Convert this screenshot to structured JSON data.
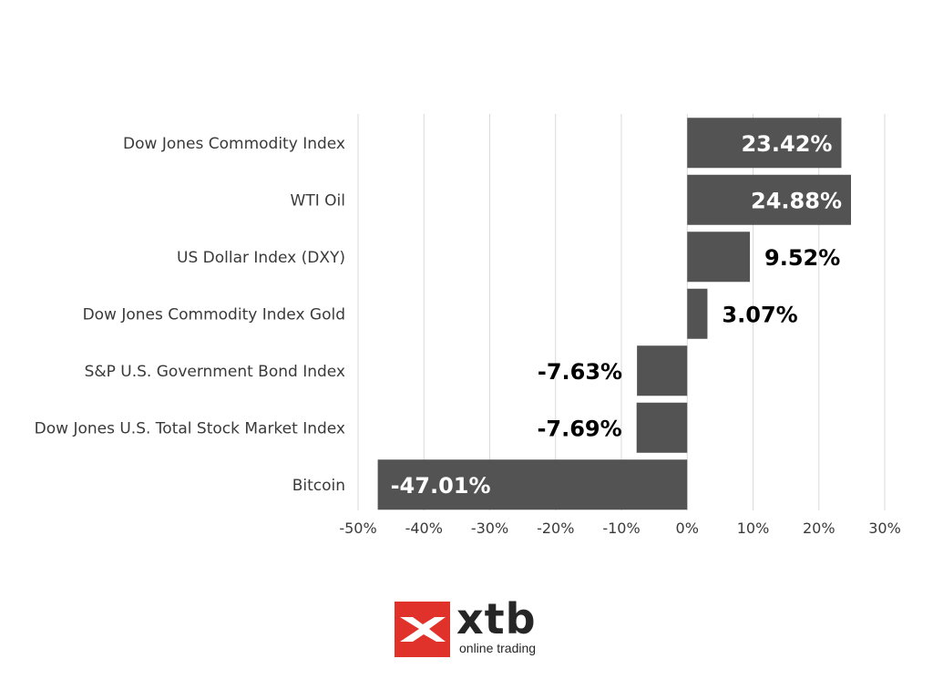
{
  "chart_data": {
    "type": "bar",
    "orientation": "horizontal",
    "categories": [
      "Dow Jones Commodity Index",
      "WTI Oil",
      "US Dollar Index (DXY)",
      "Dow Jones Commodity Index Gold",
      "S&P U.S. Government Bond Index",
      "Dow Jones U.S. Total Stock Market Index",
      "Bitcoin"
    ],
    "values": [
      23.42,
      24.88,
      9.52,
      3.07,
      -7.63,
      -7.69,
      -47.01
    ],
    "data_labels": [
      "23.42%",
      "24.88%",
      "9.52%",
      "3.07%",
      "-7.63%",
      "-7.69%",
      "-47.01%"
    ],
    "xlim": [
      -50,
      30
    ],
    "xticks": [
      -50,
      -40,
      -30,
      -20,
      -10,
      0,
      10,
      20,
      30
    ],
    "xtick_labels": [
      "-50%",
      "-40%",
      "-30%",
      "-20%",
      "-10%",
      "0%",
      "10%",
      "20%",
      "30%"
    ],
    "title": "",
    "xlabel": "",
    "ylabel": "",
    "grid": "vertical",
    "legend": "none",
    "bar_color": "#535353",
    "inside_label_color": "#ffffff",
    "outside_label_color": "#000000",
    "grid_color": "#d9d9d9"
  },
  "logo": {
    "brand": "xtb",
    "tagline": "online trading",
    "mark_color": "#e0322a",
    "mark_icon": "xtb-arrow-mark"
  }
}
